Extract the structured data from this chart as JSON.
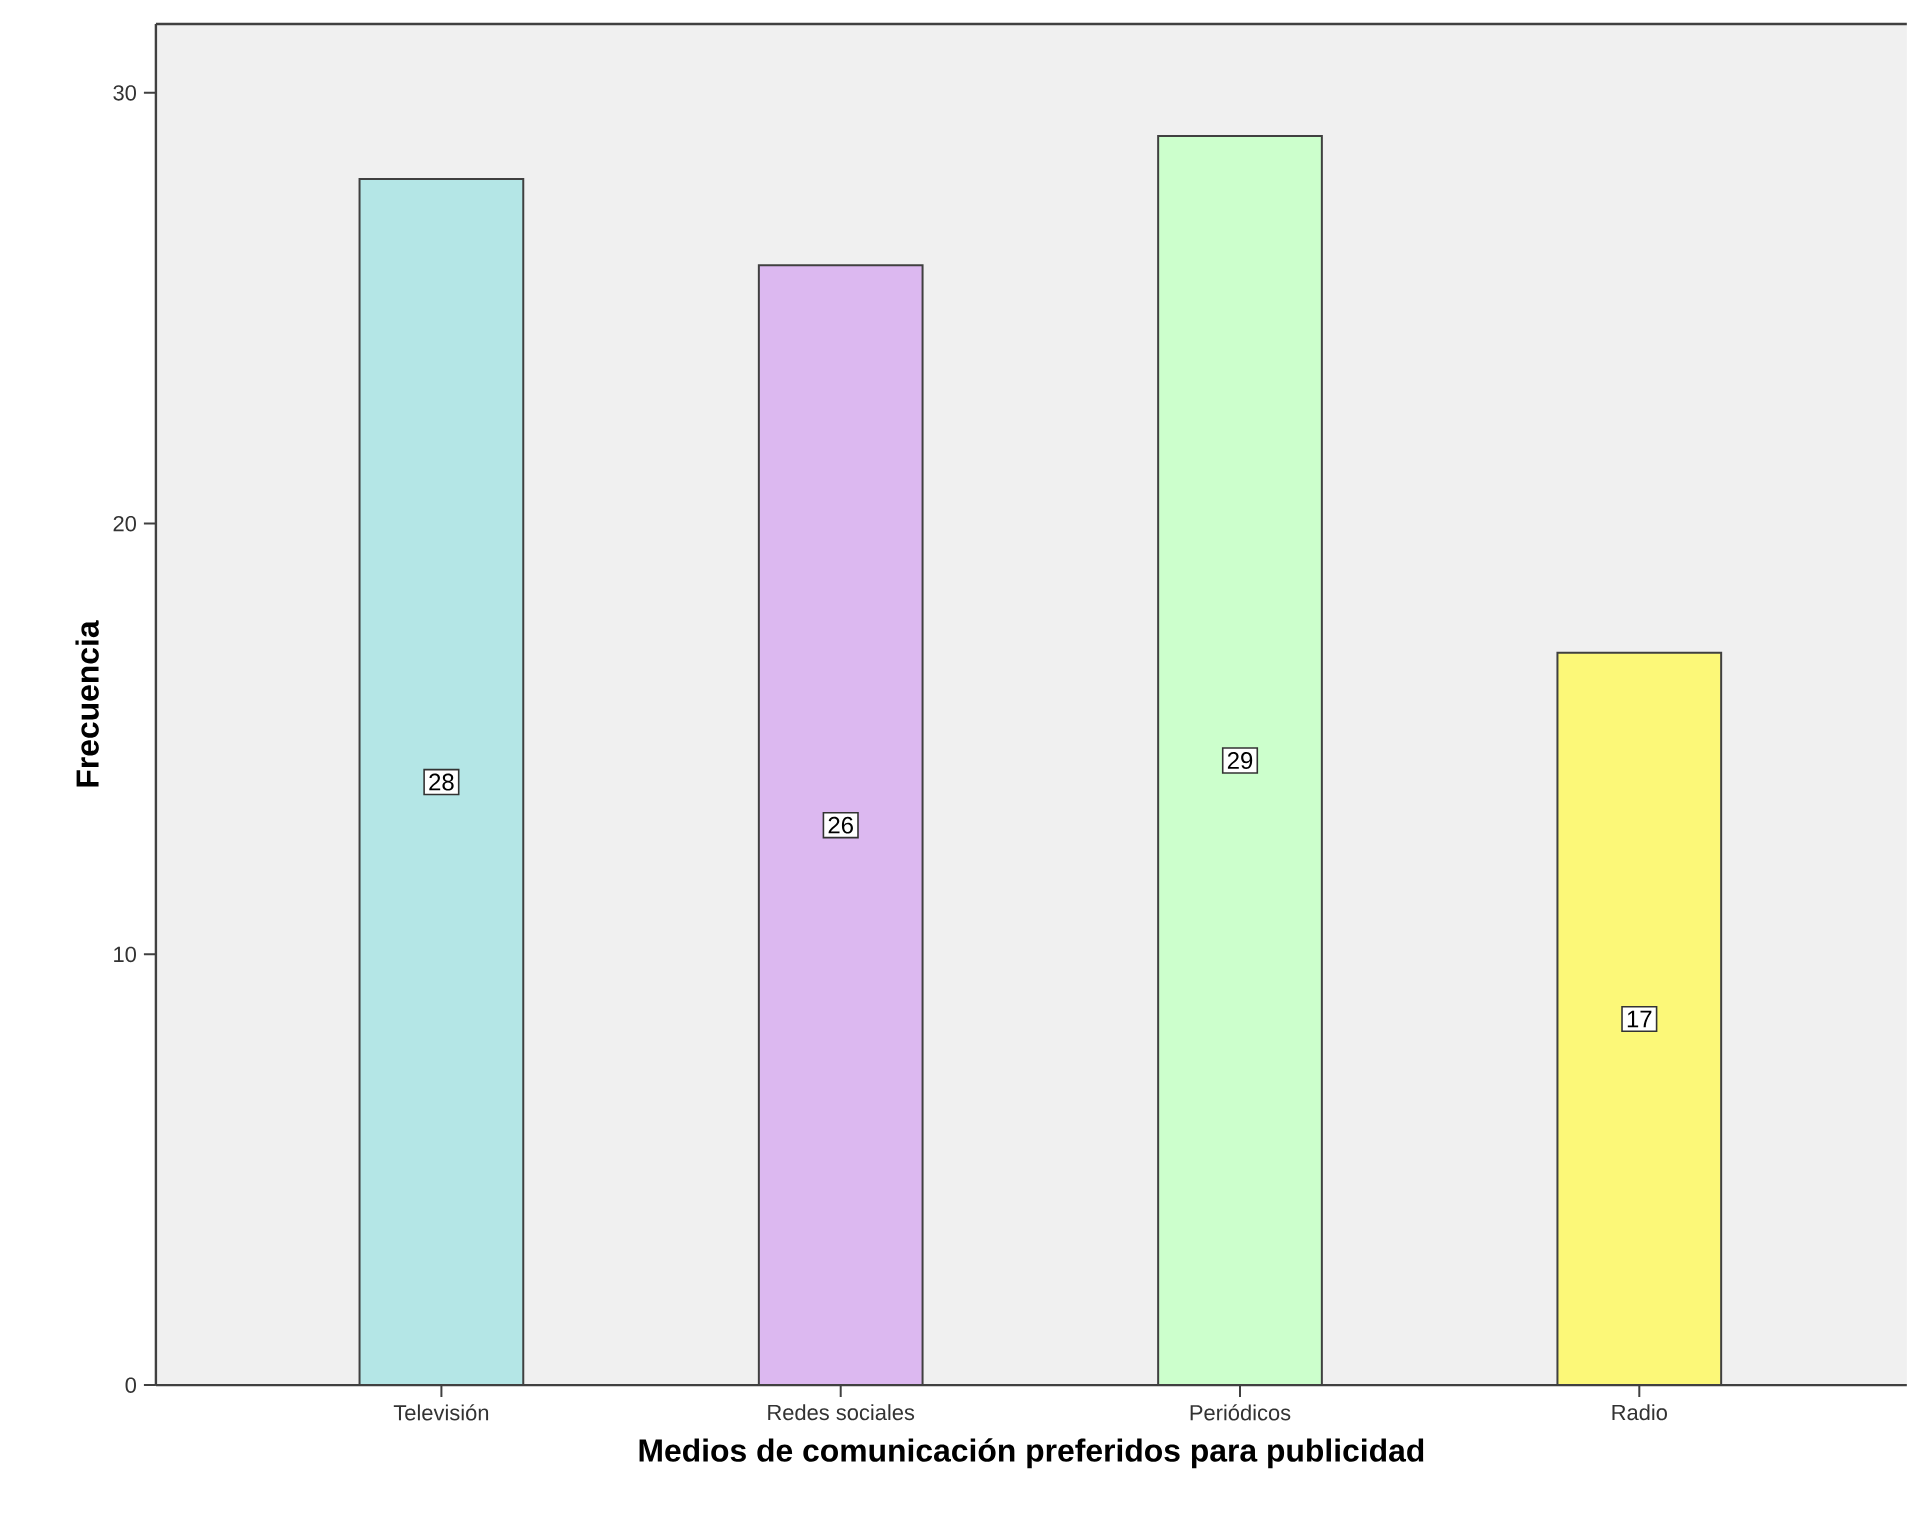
{
  "chart_data": {
    "type": "bar",
    "xlabel": "Medios de comunicación preferidos para publicidad",
    "ylabel": "Frecuencia",
    "categories": [
      "Televisión",
      "Redes sociales",
      "Periódicos",
      "Radio"
    ],
    "values": [
      28,
      26,
      29,
      17
    ],
    "colors": [
      "#b4e6e6",
      "#dcb8f0",
      "#ccffcc",
      "#fcf878"
    ],
    "ylim": [
      0,
      31.6
    ],
    "yticks": [
      0,
      10,
      20,
      30
    ],
    "grid": false,
    "data_labels": true
  }
}
